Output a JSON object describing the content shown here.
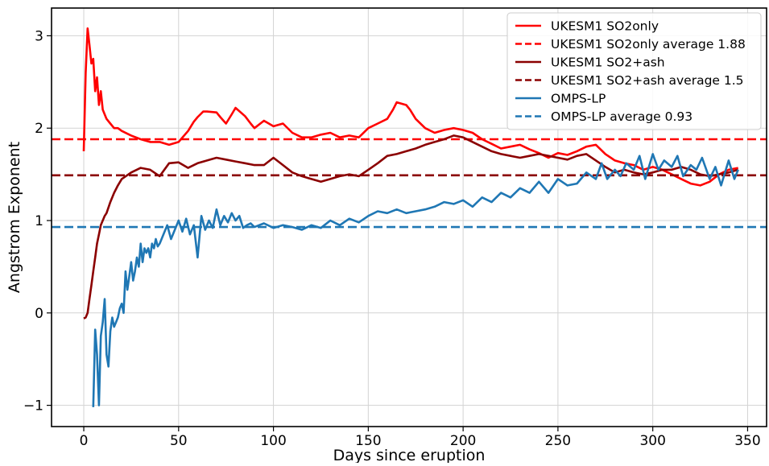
{
  "chart_data": {
    "type": "line",
    "xlabel": "Days since eruption",
    "ylabel": "Angstrom Exponent",
    "xlim": [
      -17,
      360
    ],
    "ylim": [
      -1.23,
      3.3
    ],
    "xticks": [
      0,
      50,
      100,
      150,
      200,
      250,
      300,
      350
    ],
    "yticks": [
      -1,
      0,
      1,
      2,
      3
    ],
    "ytick_labels": [
      "−1",
      "0",
      "1",
      "2",
      "3"
    ],
    "grid": true,
    "legend_position": "top-right",
    "series": [
      {
        "name": "UKESM1 SO2only",
        "color": "#ff0000",
        "style": "solid",
        "x": [
          0,
          1,
          2,
          3,
          4,
          5,
          6,
          7,
          8,
          9,
          10,
          12,
          14,
          16,
          18,
          20,
          25,
          30,
          35,
          40,
          45,
          50,
          55,
          58,
          60,
          63,
          65,
          70,
          72,
          75,
          78,
          80,
          85,
          88,
          90,
          95,
          100,
          105,
          110,
          115,
          120,
          125,
          130,
          135,
          140,
          145,
          150,
          155,
          160,
          163,
          165,
          170,
          172,
          175,
          180,
          185,
          190,
          195,
          200,
          205,
          210,
          215,
          220,
          225,
          230,
          235,
          240,
          245,
          250,
          255,
          260,
          265,
          270,
          275,
          280,
          285,
          290,
          295,
          300,
          305,
          310,
          315,
          320,
          325,
          330,
          335,
          340,
          345
        ],
        "y": [
          1.75,
          2.6,
          3.08,
          2.9,
          2.7,
          2.75,
          2.4,
          2.55,
          2.25,
          2.4,
          2.2,
          2.1,
          2.05,
          2.0,
          2.0,
          1.97,
          1.92,
          1.88,
          1.85,
          1.85,
          1.82,
          1.85,
          1.97,
          2.07,
          2.12,
          2.18,
          2.18,
          2.17,
          2.12,
          2.05,
          2.15,
          2.22,
          2.13,
          2.05,
          2.0,
          2.08,
          2.02,
          2.05,
          1.95,
          1.9,
          1.9,
          1.93,
          1.95,
          1.9,
          1.92,
          1.9,
          2.0,
          2.05,
          2.1,
          2.2,
          2.28,
          2.25,
          2.2,
          2.1,
          2.0,
          1.95,
          1.98,
          2.0,
          1.98,
          1.95,
          1.88,
          1.83,
          1.78,
          1.8,
          1.82,
          1.77,
          1.73,
          1.68,
          1.73,
          1.71,
          1.75,
          1.8,
          1.82,
          1.72,
          1.65,
          1.62,
          1.6,
          1.55,
          1.58,
          1.55,
          1.5,
          1.45,
          1.4,
          1.38,
          1.42,
          1.5,
          1.55,
          1.57
        ]
      },
      {
        "name": "UKESM1 SO2only average 1.88",
        "color": "#ff0000",
        "style": "dashed",
        "x": [
          -17,
          360
        ],
        "y": [
          1.88,
          1.88
        ]
      },
      {
        "name": "UKESM1 SO2+ash",
        "color": "#8b0000",
        "style": "solid",
        "x": [
          0,
          1,
          2,
          3,
          4,
          5,
          6,
          7,
          8,
          9,
          10,
          11,
          12,
          14,
          16,
          18,
          20,
          25,
          30,
          35,
          40,
          45,
          50,
          55,
          60,
          65,
          70,
          75,
          80,
          85,
          90,
          95,
          100,
          105,
          110,
          115,
          120,
          125,
          130,
          135,
          140,
          145,
          150,
          155,
          160,
          165,
          170,
          175,
          180,
          185,
          190,
          195,
          200,
          205,
          210,
          215,
          220,
          225,
          230,
          235,
          240,
          245,
          250,
          255,
          260,
          265,
          270,
          275,
          280,
          285,
          290,
          295,
          300,
          305,
          310,
          315,
          320,
          325,
          330,
          335,
          340,
          345
        ],
        "y": [
          -0.06,
          -0.05,
          0.0,
          0.15,
          0.3,
          0.45,
          0.6,
          0.75,
          0.85,
          0.95,
          1.0,
          1.05,
          1.08,
          1.2,
          1.3,
          1.38,
          1.45,
          1.52,
          1.57,
          1.55,
          1.48,
          1.62,
          1.63,
          1.57,
          1.62,
          1.65,
          1.68,
          1.66,
          1.64,
          1.62,
          1.6,
          1.6,
          1.68,
          1.6,
          1.52,
          1.48,
          1.45,
          1.42,
          1.45,
          1.48,
          1.5,
          1.48,
          1.55,
          1.62,
          1.7,
          1.72,
          1.75,
          1.78,
          1.82,
          1.85,
          1.88,
          1.92,
          1.9,
          1.85,
          1.8,
          1.75,
          1.72,
          1.7,
          1.68,
          1.7,
          1.72,
          1.7,
          1.68,
          1.66,
          1.7,
          1.72,
          1.65,
          1.58,
          1.52,
          1.55,
          1.52,
          1.5,
          1.52,
          1.55,
          1.55,
          1.58,
          1.55,
          1.5,
          1.48,
          1.5,
          1.52,
          1.55
        ]
      },
      {
        "name": "UKESM1 SO2+ash average 1.5",
        "color": "#8b0000",
        "style": "dashed",
        "x": [
          -17,
          360
        ],
        "y": [
          1.49,
          1.49
        ]
      },
      {
        "name": "OMPS-LP",
        "color": "#1f77b4",
        "style": "solid",
        "x": [
          5,
          6,
          7,
          8,
          9,
          10,
          11,
          12,
          13,
          14,
          15,
          16,
          17,
          18,
          19,
          20,
          21,
          22,
          23,
          24,
          25,
          26,
          27,
          28,
          29,
          30,
          31,
          32,
          33,
          34,
          35,
          36,
          37,
          38,
          39,
          40,
          42,
          44,
          46,
          48,
          50,
          52,
          54,
          56,
          58,
          60,
          62,
          64,
          66,
          68,
          70,
          72,
          74,
          76,
          78,
          80,
          82,
          84,
          86,
          88,
          90,
          95,
          100,
          105,
          110,
          115,
          120,
          125,
          130,
          135,
          140,
          145,
          150,
          155,
          160,
          165,
          170,
          175,
          180,
          185,
          190,
          195,
          200,
          205,
          210,
          215,
          220,
          225,
          230,
          235,
          240,
          245,
          250,
          255,
          260,
          265,
          270,
          273,
          276,
          280,
          283,
          286,
          290,
          293,
          296,
          300,
          303,
          306,
          310,
          313,
          316,
          320,
          323,
          326,
          330,
          333,
          336,
          340,
          343,
          345
        ],
        "y": [
          -1.02,
          -0.18,
          -0.45,
          -1.0,
          -0.25,
          -0.1,
          0.15,
          -0.45,
          -0.58,
          -0.2,
          -0.05,
          -0.15,
          -0.1,
          -0.05,
          0.05,
          0.1,
          0.0,
          0.45,
          0.25,
          0.4,
          0.55,
          0.35,
          0.45,
          0.6,
          0.5,
          0.75,
          0.55,
          0.7,
          0.65,
          0.7,
          0.6,
          0.75,
          0.7,
          0.8,
          0.72,
          0.75,
          0.85,
          0.95,
          0.8,
          0.9,
          1.0,
          0.88,
          1.02,
          0.85,
          0.95,
          0.6,
          1.05,
          0.9,
          1.0,
          0.92,
          1.12,
          0.95,
          1.05,
          0.98,
          1.08,
          1.0,
          1.05,
          0.92,
          0.95,
          0.97,
          0.93,
          0.97,
          0.92,
          0.95,
          0.93,
          0.9,
          0.95,
          0.92,
          1.0,
          0.95,
          1.02,
          0.98,
          1.05,
          1.1,
          1.08,
          1.12,
          1.08,
          1.1,
          1.12,
          1.15,
          1.2,
          1.18,
          1.22,
          1.15,
          1.25,
          1.2,
          1.3,
          1.25,
          1.35,
          1.3,
          1.42,
          1.3,
          1.45,
          1.38,
          1.4,
          1.52,
          1.45,
          1.62,
          1.45,
          1.55,
          1.48,
          1.62,
          1.55,
          1.7,
          1.45,
          1.72,
          1.55,
          1.65,
          1.58,
          1.7,
          1.48,
          1.6,
          1.55,
          1.68,
          1.45,
          1.58,
          1.38,
          1.65,
          1.45,
          1.55
        ]
      },
      {
        "name": "OMPS-LP average 0.93",
        "color": "#1f77b4",
        "style": "dashed",
        "x": [
          -17,
          360
        ],
        "y": [
          0.93,
          0.93
        ]
      }
    ]
  }
}
